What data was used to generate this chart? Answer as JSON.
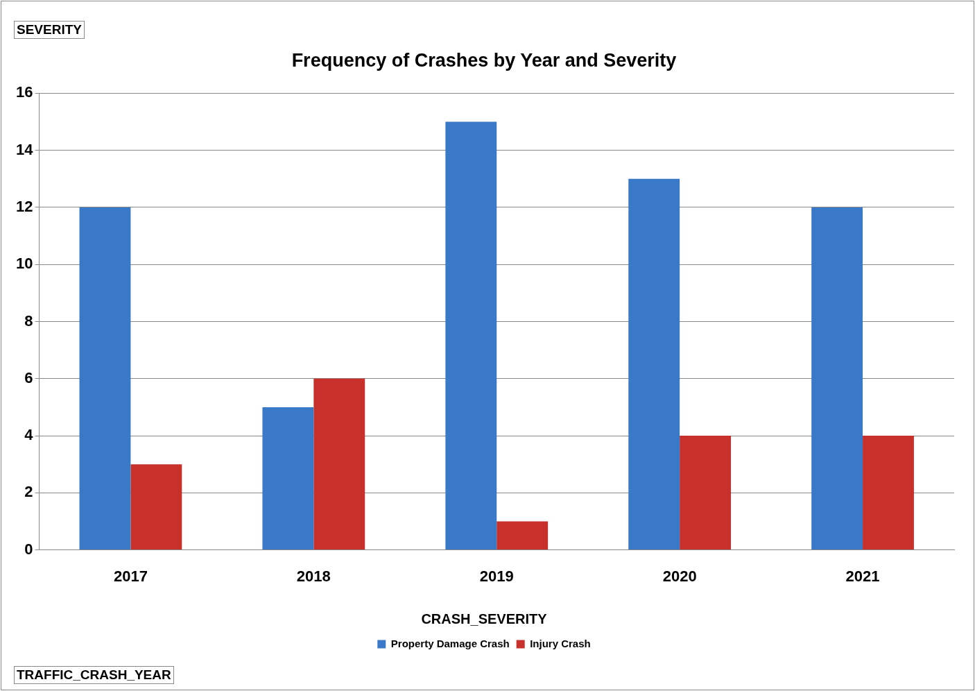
{
  "chart_data": {
    "type": "bar",
    "title": "Frequency of Crashes by Year and Severity",
    "annotations": [
      "SEVERITY",
      "TRAFFIC_CRASH_YEAR"
    ],
    "legend_title": "CRASH_SEVERITY",
    "categories": [
      "2017",
      "2018",
      "2019",
      "2020",
      "2021"
    ],
    "series": [
      {
        "name": "Property Damage Crash",
        "color": "#3a78c8",
        "values": [
          12,
          5,
          15,
          13,
          12
        ]
      },
      {
        "name": "Injury Crash",
        "color": "#c8302c",
        "values": [
          3,
          6,
          1,
          4,
          4
        ]
      }
    ],
    "ylim": [
      0,
      16
    ],
    "yticks": [
      0,
      2,
      4,
      6,
      8,
      10,
      12,
      14,
      16
    ],
    "grid": "y",
    "legend": "bottom"
  }
}
